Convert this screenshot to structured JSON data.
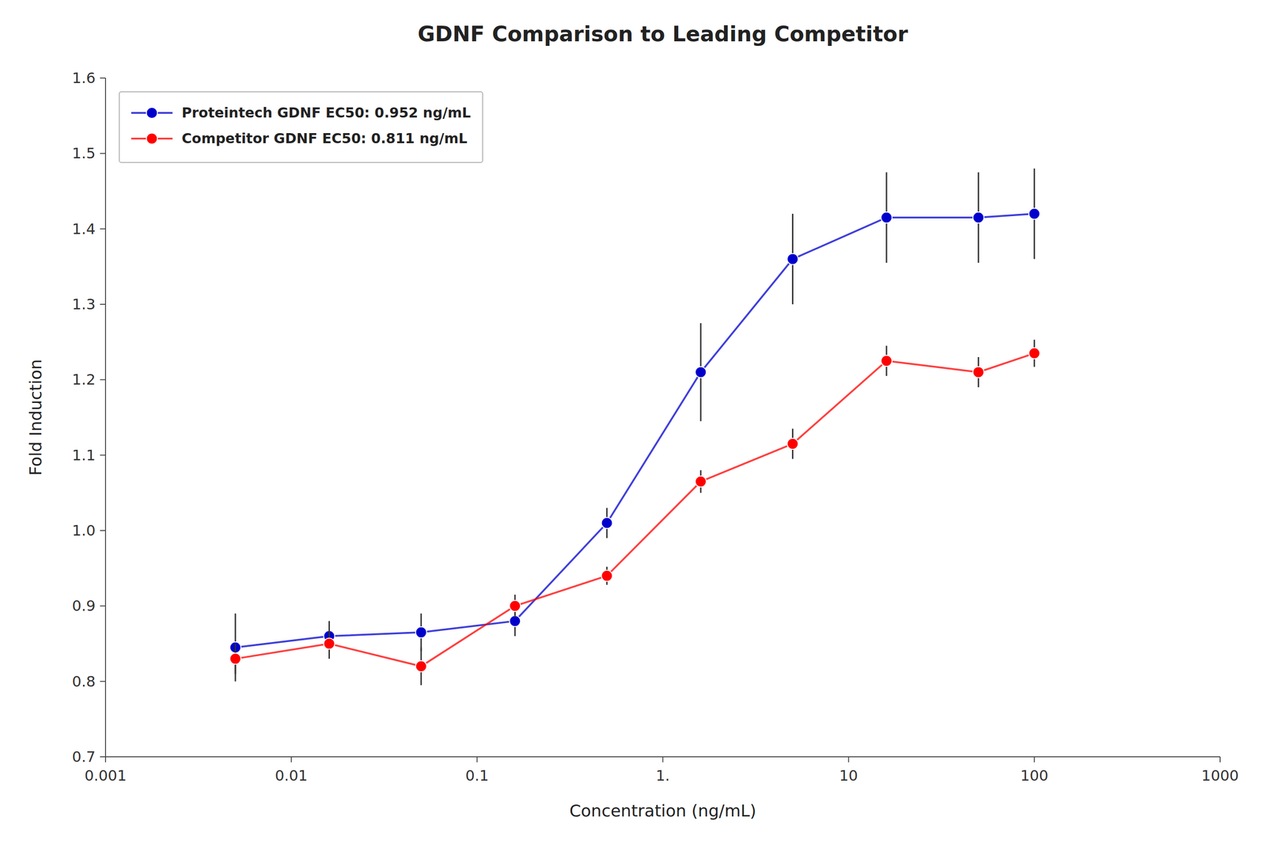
{
  "chart_data": {
    "type": "line",
    "title": "GDNF Comparison to Leading Competitor",
    "xlabel": "Concentration (ng/mL)",
    "ylabel": "Fold Induction",
    "log": "x",
    "grid": false,
    "legend": "upper-left",
    "xlim": [
      0.001,
      1000
    ],
    "xticks": [
      0.001,
      0.01,
      0.1,
      {
        "value": 1,
        "label": "1."
      },
      10,
      100,
      1000
    ],
    "ylim": [
      0.7,
      1.6
    ],
    "yticks": [
      0.7,
      0.8,
      0.9,
      {
        "value": 1.0,
        "label": "1.0"
      },
      1.1,
      1.2,
      1.3,
      1.4,
      1.5,
      1.6
    ],
    "x": [
      0.005,
      0.016,
      0.05,
      0.16,
      0.5,
      1.6,
      5.0,
      16.0,
      50.0,
      100.0
    ],
    "series": [
      {
        "name": "Proteintech GDNF EC50: 0.952 ng/mL",
        "color": "#0000CD",
        "marker": "circle",
        "values": [
          0.845,
          0.86,
          0.865,
          0.88,
          1.01,
          1.21,
          1.36,
          1.415,
          1.415,
          1.42
        ],
        "yerr": [
          0.045,
          0.02,
          0.025,
          0.02,
          0.02,
          0.065,
          0.06,
          0.06,
          0.06,
          0.06
        ]
      },
      {
        "name": "Competitor GDNF EC50: 0.811 ng/mL",
        "color": "#FF0000",
        "marker": "circle",
        "values": [
          0.83,
          0.85,
          0.82,
          0.9,
          0.94,
          1.065,
          1.115,
          1.225,
          1.21,
          1.235
        ],
        "yerr": [
          0.02,
          0.02,
          0.025,
          0.015,
          0.012,
          0.015,
          0.02,
          0.02,
          0.02,
          0.018
        ]
      }
    ]
  }
}
